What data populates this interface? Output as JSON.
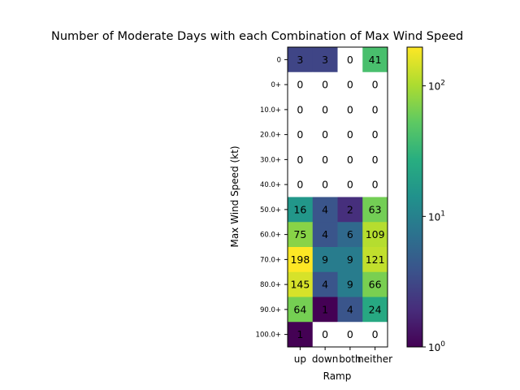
{
  "chart_data": {
    "type": "heatmap",
    "title": "Number of Moderate Days with each Combination of Max Wind Speed",
    "xlabel": "Ramp",
    "ylabel": "Max Wind Speed (kt)",
    "x_categories": [
      "up",
      "down",
      "both",
      "neither"
    ],
    "y_categories": [
      "0",
      "0+",
      "10.0+",
      "20.0+",
      "30.0+",
      "40.0+",
      "50.0+",
      "60.0+",
      "70.0+",
      "80.0+",
      "90.0+",
      "100.0+"
    ],
    "values": [
      [
        3,
        3,
        0,
        41
      ],
      [
        0,
        0,
        0,
        0
      ],
      [
        0,
        0,
        0,
        0
      ],
      [
        0,
        0,
        0,
        0
      ],
      [
        0,
        0,
        0,
        0
      ],
      [
        0,
        0,
        0,
        0
      ],
      [
        16,
        4,
        2,
        63
      ],
      [
        75,
        4,
        6,
        109
      ],
      [
        198,
        9,
        9,
        121
      ],
      [
        145,
        4,
        9,
        66
      ],
      [
        64,
        1,
        4,
        24
      ],
      [
        1,
        0,
        0,
        0
      ]
    ],
    "color_scale": "log",
    "colormap": "viridis",
    "vmin": 1,
    "vmax": 198,
    "colorbar_ticks": [
      {
        "value": 1,
        "label": "10",
        "exp": "0"
      },
      {
        "value": 10,
        "label": "10",
        "exp": "1"
      },
      {
        "value": 100,
        "label": "10",
        "exp": "2"
      }
    ],
    "zero_cell_color": "#ffffff"
  }
}
